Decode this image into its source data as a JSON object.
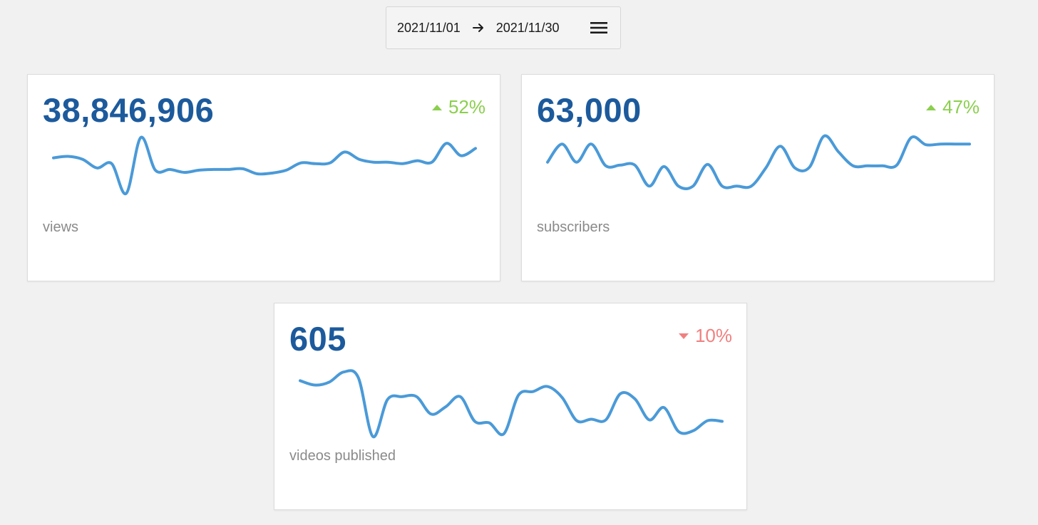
{
  "date_range": {
    "start": "2021/11/01",
    "end": "2021/11/30",
    "arrow_icon": "arrow-right-icon",
    "menu_icon": "hamburger-menu-icon"
  },
  "colors": {
    "value": "#1c5a9c",
    "sparkline": "#4a9ad8",
    "up": "#8bcf4e",
    "down": "#f08080",
    "label": "#8a8a8a"
  },
  "cards": [
    {
      "value": "38,846,906",
      "change": "52%",
      "direction": "up",
      "label": "views",
      "sparkline": [
        72,
        74,
        70,
        58,
        64,
        23,
        100,
        55,
        56,
        52,
        55,
        56,
        56,
        57,
        50,
        51,
        55,
        65,
        64,
        65,
        80,
        70,
        66,
        66,
        64,
        68,
        66,
        92,
        75,
        85
      ]
    },
    {
      "value": "63,000",
      "change": "47%",
      "direction": "up",
      "label": "subscribers",
      "sparkline": [
        66,
        91,
        66,
        91,
        61,
        62,
        62,
        33,
        60,
        33,
        33,
        63,
        33,
        33,
        33,
        58,
        88,
        58,
        59,
        102,
        80,
        61,
        61,
        61,
        62,
        100,
        90,
        91,
        91,
        91
      ]
    },
    {
      "value": "605",
      "change": "10%",
      "direction": "down",
      "label": "videos published",
      "sparkline": [
        80,
        74,
        78,
        92,
        84,
        3,
        54,
        58,
        58,
        34,
        44,
        58,
        24,
        22,
        7,
        60,
        65,
        72,
        57,
        25,
        27,
        26,
        62,
        55,
        26,
        43,
        10,
        11,
        25,
        24
      ]
    }
  ]
}
